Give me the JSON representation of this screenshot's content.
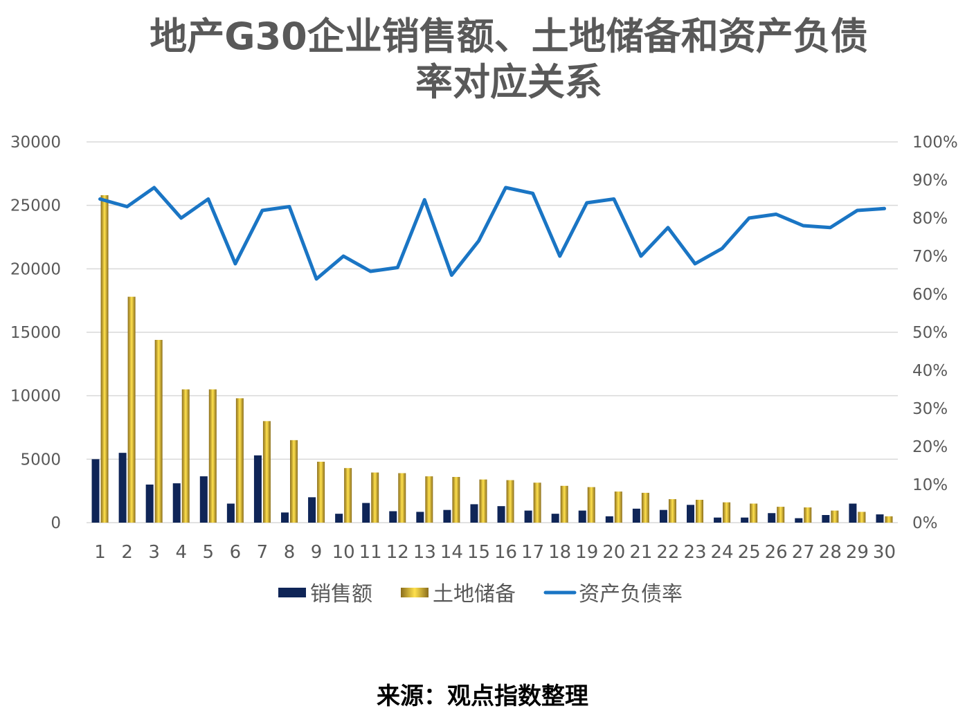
{
  "title": {
    "line1": "地产G30企业销售额、土地储备和资产负债",
    "line2": "率对应关系"
  },
  "source": "来源：观点指数整理",
  "colors": {
    "sales": "#0f2557",
    "land_light": "#ffe14d",
    "land_dark": "#8a6d1c",
    "debt": "#1a75c4",
    "grid": "#d9d9d9",
    "text": "#595959"
  },
  "chart_data": {
    "type": "bar",
    "categories": [
      "1",
      "2",
      "3",
      "4",
      "5",
      "6",
      "7",
      "8",
      "9",
      "10",
      "11",
      "12",
      "13",
      "14",
      "15",
      "16",
      "17",
      "18",
      "19",
      "20",
      "21",
      "22",
      "23",
      "24",
      "25",
      "26",
      "27",
      "28",
      "29",
      "30"
    ],
    "series": [
      {
        "name": "销售额",
        "type": "bar",
        "axis": "left",
        "values": [
          5000,
          5500,
          3000,
          3100,
          3650,
          1500,
          5300,
          800,
          2000,
          700,
          1550,
          900,
          850,
          1000,
          1450,
          1300,
          950,
          700,
          950,
          500,
          1100,
          1000,
          1400,
          400,
          400,
          750,
          350,
          600,
          1500,
          650
        ]
      },
      {
        "name": "土地储备",
        "type": "bar",
        "axis": "left",
        "values": [
          25800,
          17800,
          14400,
          10500,
          10500,
          9800,
          8000,
          6500,
          4800,
          4300,
          3950,
          3900,
          3650,
          3600,
          3400,
          3350,
          3150,
          2900,
          2800,
          2450,
          2350,
          1850,
          1800,
          1600,
          1500,
          1250,
          1200,
          950,
          850,
          500
        ]
      },
      {
        "name": "资产负债率",
        "type": "line",
        "axis": "right",
        "values": [
          0.85,
          0.83,
          0.88,
          0.8,
          0.85,
          0.68,
          0.82,
          0.83,
          0.64,
          0.7,
          0.66,
          0.67,
          0.848,
          0.65,
          0.74,
          0.88,
          0.865,
          0.7,
          0.84,
          0.85,
          0.7,
          0.775,
          0.68,
          0.72,
          0.8,
          0.81,
          0.78,
          0.775,
          0.82,
          0.825
        ]
      }
    ],
    "left_axis": {
      "ylim": [
        0,
        30000
      ],
      "ticks": [
        "0",
        "5000",
        "10000",
        "15000",
        "20000",
        "25000",
        "30000"
      ]
    },
    "right_axis": {
      "ylim": [
        0,
        1
      ],
      "ticks": [
        "0%",
        "10%",
        "20%",
        "30%",
        "40%",
        "50%",
        "60%",
        "70%",
        "80%",
        "90%",
        "100%"
      ]
    },
    "grid": true,
    "legend": {
      "position": "bottom",
      "entries": [
        "销售额",
        "土地储备",
        "资产负债率"
      ]
    }
  }
}
